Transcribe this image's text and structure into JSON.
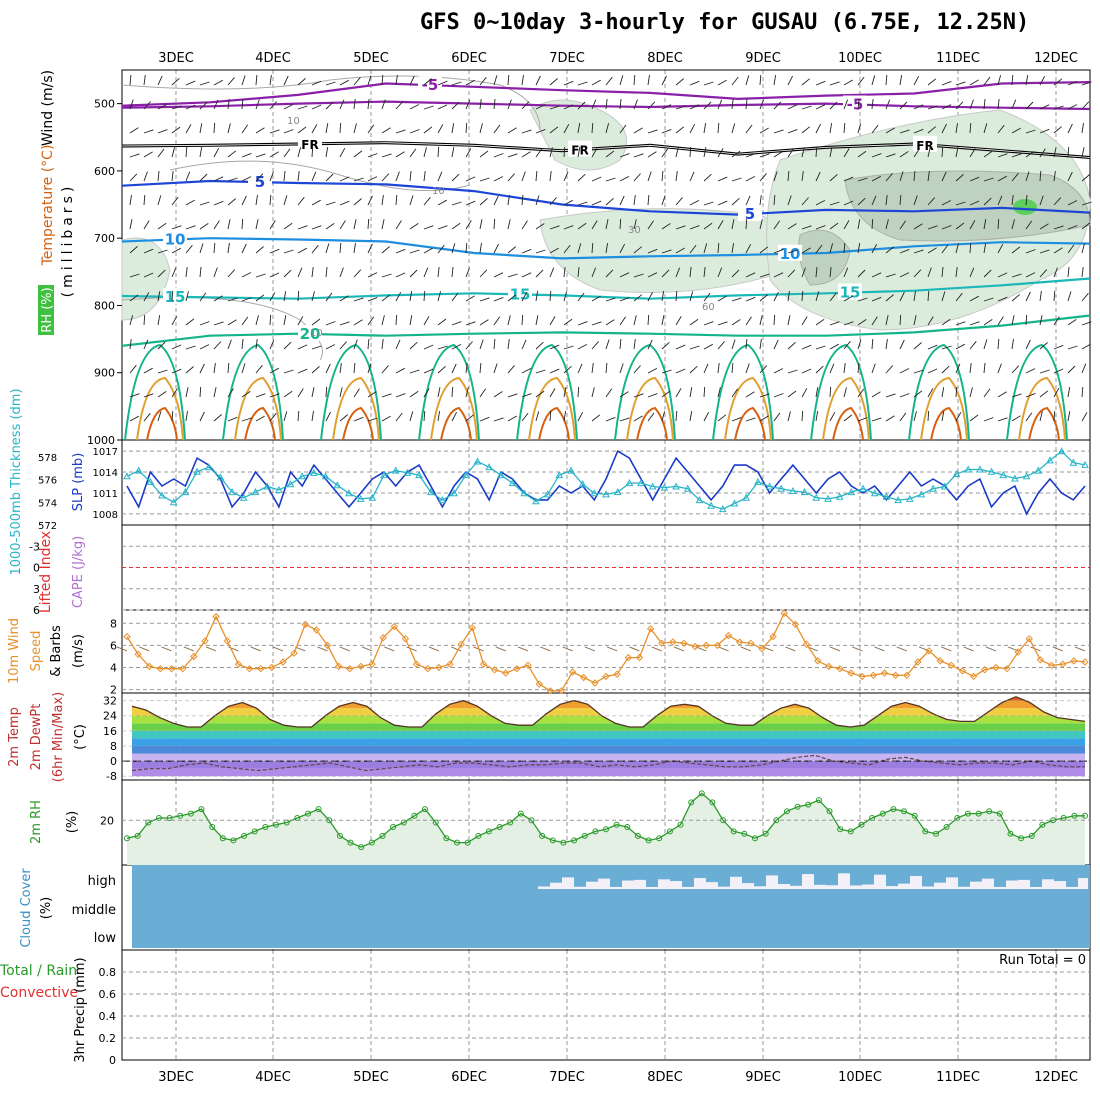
{
  "title": "GFS 0~10day 3-hourly for GUSAU (6.75E, 12.25N)",
  "dates": [
    "3DEC",
    "4DEC",
    "5DEC",
    "6DEC",
    "7DEC",
    "8DEC",
    "9DEC",
    "10DEC",
    "11DEC",
    "12DEC"
  ],
  "colors": {
    "purple": "#8a1fa8",
    "black": "#000000",
    "blue": "#1e46d6",
    "sky": "#1e8ee0",
    "teal": "#1ab8b8",
    "green": "#14b48a",
    "orange": "#e0a030",
    "darkorange": "#d66010",
    "magenta": "#e0208c",
    "grid": "#9a9a9a",
    "rhfill": "#dcecdc",
    "cloud": "#6aaed6",
    "wind": "#8c6c4c",
    "windspeed": "#e8902a",
    "rh2m": "#2a9a2a",
    "slp": "#1a3ac8",
    "thick": "#28b4c8",
    "liftedzero": "#e03030"
  },
  "chart_data": [
    {
      "type": "contour",
      "name": "upper-air",
      "ylabel": "(millibars)",
      "ylabel_parts": [
        "Wind (m/s)",
        "Temperature (°C)",
        "RH (%)"
      ],
      "yticks": [
        500,
        600,
        700,
        800,
        900,
        1000
      ],
      "ylim": [
        450,
        1000
      ],
      "temperature_contours": [
        {
          "label": "-5",
          "level_mb": [
            503,
            498,
            487,
            470,
            475,
            480,
            484,
            493,
            488,
            485,
            470,
            468
          ]
        },
        {
          "label": "-5",
          "level_mb": [
            506,
            504,
            500,
            497,
            500,
            503,
            505,
            502,
            500,
            504,
            506,
            508
          ]
        },
        {
          "label": "FR",
          "level_mb": [
            563,
            562,
            560,
            558,
            562,
            570,
            562,
            575,
            565,
            560,
            570,
            580
          ]
        },
        {
          "label": "5",
          "level_mb": [
            622,
            615,
            618,
            620,
            630,
            650,
            660,
            665,
            658,
            660,
            655,
            662
          ]
        },
        {
          "label": "10",
          "level_mb": [
            705,
            700,
            702,
            705,
            722,
            730,
            727,
            725,
            722,
            712,
            706,
            708
          ]
        },
        {
          "label": "15",
          "level_mb": [
            786,
            788,
            790,
            785,
            782,
            785,
            790,
            785,
            782,
            778,
            770,
            760
          ]
        },
        {
          "label": "20",
          "level_mb": [
            860,
            845,
            842,
            845,
            842,
            840,
            842,
            845,
            845,
            840,
            830,
            815
          ]
        }
      ],
      "rh_labels": [
        "10",
        "10",
        "30",
        "10",
        "60"
      ]
    },
    {
      "type": "line",
      "name": "thickness-slp",
      "ylabel_left": "1000-500mb Thickness (dm)",
      "ylabel_right": "SLP (mb)",
      "yticks_left": [
        572,
        574,
        576,
        578
      ],
      "yticks_right": [
        1008,
        1011,
        1014,
        1017
      ],
      "ylim_left": [
        572,
        579.5
      ],
      "ylim_right": [
        1006.4,
        1018.6
      ],
      "series": [
        {
          "values": [
            1012,
            1009,
            1014,
            1012,
            1013,
            1012,
            1016,
            1015,
            1013,
            1009,
            1011,
            1014,
            1012,
            1009,
            1014,
            1012,
            1015,
            1013,
            1011,
            1009,
            1011,
            1013,
            1014,
            1012,
            1014,
            1015,
            1012,
            1009,
            1012,
            1014,
            1013,
            1010,
            1014,
            1013,
            1011,
            1010,
            1010,
            1012,
            1011,
            1012,
            1010,
            1013,
            1017,
            1016,
            1013,
            1010,
            1013,
            1016,
            1014,
            1012,
            1010,
            1012,
            1015,
            1015,
            1014,
            1011,
            1013,
            1015,
            1013,
            1011,
            1013,
            1014,
            1012,
            1011,
            1012,
            1010,
            1012,
            1014,
            1012,
            1013,
            1012,
            1010,
            1012,
            1013,
            1009,
            1011,
            1012,
            1008,
            1011,
            1013,
            1011,
            1010,
            1012
          ]
        },
        {
          "values": [
            576.3,
            576.8,
            575.8,
            574.6,
            574.0,
            574.9,
            576.7,
            577.1,
            576.2,
            574.9,
            574.4,
            574.9,
            575.4,
            575.1,
            575.6,
            576.3,
            576.6,
            576.3,
            575.5,
            574.8,
            574.3,
            574.4,
            576.4,
            576.8,
            576.6,
            576.4,
            574.9,
            574.2,
            574.8,
            576.4,
            577.6,
            577.1,
            576.4,
            575.7,
            574.8,
            574.1,
            574.7,
            576.4,
            576.8,
            575.6,
            574.8,
            574.7,
            574.9,
            575.7,
            575.7,
            575.4,
            575.3,
            575.4,
            575.2,
            574.2,
            573.7,
            573.4,
            573.9,
            574.4,
            575.8,
            575.4,
            575.2,
            575.0,
            574.9,
            574.4,
            574.3,
            574.5,
            574.9,
            575.2,
            574.8,
            574.5,
            574.2,
            574.3,
            574.7,
            575.2,
            575.4,
            576.5,
            576.9,
            576.9,
            576.7,
            576.4,
            576.1,
            576.3,
            576.8,
            577.7,
            578.5,
            577.5,
            577.3
          ]
        }
      ]
    },
    {
      "type": "line",
      "name": "lifted-index",
      "ylabel_parts": [
        "Lifted Index",
        "CAPE (J/kg)"
      ],
      "yticks": [
        -3,
        0,
        3,
        6
      ],
      "ylim": [
        -6,
        6
      ]
    },
    {
      "type": "line",
      "name": "10m-wind",
      "ylabel_parts": [
        "10m Wind",
        "Speed",
        "& Barbs",
        "(m/s)"
      ],
      "yticks": [
        2,
        4,
        6,
        8
      ],
      "ylim": [
        1.7,
        9.2
      ],
      "series": [
        {
          "values": [
            6.8,
            5.2,
            4.1,
            3.9,
            3.9,
            3.9,
            5.0,
            6.4,
            8.6,
            6.4,
            4.3,
            3.9,
            3.9,
            4.0,
            4.5,
            5.3,
            7.9,
            7.4,
            6.0,
            4.1,
            3.9,
            4.1,
            4.3,
            6.7,
            7.7,
            6.6,
            4.3,
            3.9,
            4.0,
            4.3,
            6.1,
            7.6,
            4.3,
            3.8,
            3.5,
            3.9,
            4.2,
            2.5,
            1.9,
            1.9,
            3.6,
            3.1,
            2.6,
            3.2,
            3.4,
            4.9,
            4.9,
            7.5,
            6.2,
            6.3,
            6.2,
            5.9,
            6.0,
            6.0,
            6.9,
            6.3,
            6.2,
            5.7,
            6.8,
            8.9,
            7.9,
            6.1,
            4.6,
            4.1,
            3.9,
            3.5,
            3.2,
            3.3,
            3.5,
            3.3,
            3.3,
            4.5,
            5.5,
            4.6,
            4.2,
            3.7,
            3.2,
            3.8,
            4.0,
            3.9,
            5.4,
            6.6,
            4.7,
            4.2,
            4.3,
            4.6,
            4.5
          ]
        }
      ]
    },
    {
      "type": "area",
      "name": "2m-temp",
      "ylabel_parts": [
        "2m Temp",
        "2m DewPt",
        "(6hr Min/Max)",
        "(°C)"
      ],
      "yticks": [
        -8,
        0,
        8,
        16,
        24,
        32
      ],
      "ylim": [
        -10,
        36
      ],
      "series": [
        {
          "name": "temp",
          "values": [
            29,
            27,
            23,
            20,
            18,
            18,
            24,
            29,
            31,
            28,
            22,
            19,
            18,
            18,
            24,
            29,
            31,
            29,
            23,
            19,
            18,
            18,
            25,
            30,
            32,
            29,
            24,
            20,
            19,
            19,
            25,
            30,
            32,
            30,
            24,
            20,
            18,
            18,
            24,
            29,
            30,
            29,
            24,
            20,
            19,
            19,
            24,
            28,
            30,
            28,
            23,
            19,
            18,
            19,
            24,
            29,
            31,
            29,
            25,
            22,
            21,
            21,
            26,
            31,
            34,
            31,
            26,
            23,
            22,
            21
          ]
        },
        {
          "name": "dewpoint",
          "values": [
            -5,
            -4,
            -4,
            -2,
            -1,
            -3,
            -4,
            -5,
            -4,
            -3,
            -2,
            -1,
            -3,
            -5,
            -4,
            -3,
            -2,
            -3,
            -1,
            -1,
            -2,
            -3,
            -2,
            -2,
            -1,
            -1,
            -3,
            -2,
            -3,
            -2,
            0,
            -1,
            -2,
            -3,
            -3,
            -2,
            0,
            2,
            3,
            0,
            -1,
            -2,
            1,
            2,
            0,
            -1,
            -2,
            -1,
            -1,
            -2,
            0,
            -2,
            -3,
            -3
          ]
        }
      ]
    },
    {
      "type": "area",
      "name": "2m-rh",
      "ylabel_parts": [
        "2m RH",
        "(%)"
      ],
      "yticks": [
        20
      ],
      "ylim": [
        0,
        38
      ],
      "series": [
        {
          "values": [
            12,
            13,
            19,
            21,
            21,
            22,
            23,
            25,
            17,
            12,
            11,
            13,
            15,
            17,
            18,
            19,
            21,
            23,
            25,
            20,
            13,
            10,
            8,
            10,
            13,
            17,
            19,
            22,
            25,
            19,
            12,
            10,
            10,
            13,
            15,
            17,
            19,
            23,
            20,
            13,
            11,
            10,
            11,
            13,
            15,
            16,
            18,
            17,
            13,
            11,
            12,
            15,
            18,
            28,
            32,
            28,
            20,
            15,
            14,
            12,
            14,
            20,
            24,
            26,
            27,
            29,
            24,
            16,
            15,
            18,
            21,
            23,
            25,
            24,
            22,
            15,
            14,
            17,
            21,
            23,
            23,
            24,
            23,
            14,
            12,
            13,
            18,
            20,
            21,
            22,
            22
          ]
        }
      ]
    },
    {
      "type": "bar",
      "name": "cloud-cover",
      "ylabel_parts": [
        "Cloud Cover",
        "(%)"
      ],
      "levels": [
        "high",
        "middle",
        "low"
      ]
    },
    {
      "type": "bar",
      "name": "precip",
      "ylabel_parts": [
        "Total / Rain",
        "Convective",
        "3hr Precip (mm)"
      ],
      "yticks": [
        0,
        0.2,
        0.4,
        0.6,
        0.8
      ],
      "ylim": [
        0,
        1
      ],
      "annotation": "Run Total = 0",
      "values": []
    }
  ]
}
